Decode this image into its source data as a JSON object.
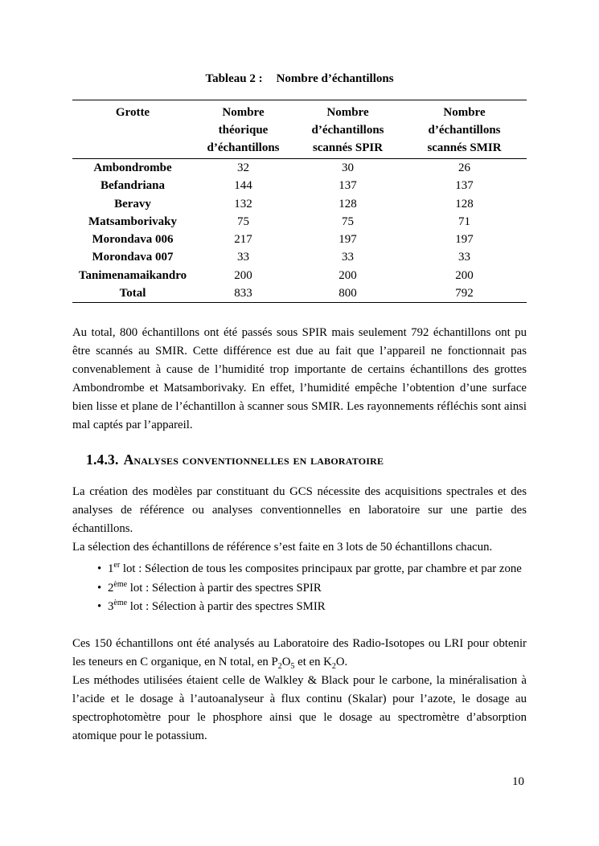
{
  "page": {
    "number": "10"
  },
  "table": {
    "caption_label": "Tableau 2 :",
    "caption_title": "Nombre d’échantillons",
    "headers": {
      "col1": "Grotte",
      "col2": [
        "Nombre",
        "théorique",
        "d’échantillons"
      ],
      "col3": [
        "Nombre",
        "d’échantillons",
        "scannés SPIR"
      ],
      "col4": [
        "Nombre",
        "d’échantillons",
        "scannés SMIR"
      ]
    },
    "rows": [
      {
        "grotte": "Ambondrombe",
        "theorique": "32",
        "spir": "30",
        "smir": "26"
      },
      {
        "grotte": "Befandriana",
        "theorique": "144",
        "spir": "137",
        "smir": "137"
      },
      {
        "grotte": "Beravy",
        "theorique": "132",
        "spir": "128",
        "smir": "128"
      },
      {
        "grotte": "Matsamborivaky",
        "theorique": "75",
        "spir": "75",
        "smir": "71"
      },
      {
        "grotte": "Morondava 006",
        "theorique": "217",
        "spir": "197",
        "smir": "197"
      },
      {
        "grotte": "Morondava 007",
        "theorique": "33",
        "spir": "33",
        "smir": "33"
      },
      {
        "grotte": "Tanimenamaikandro",
        "theorique": "200",
        "spir": "200",
        "smir": "200"
      },
      {
        "grotte": "Total",
        "theorique": "833",
        "spir": "800",
        "smir": "792"
      }
    ]
  },
  "section": {
    "number": "1.4.3.",
    "title": "Analyses conventionnelles en laboratoire"
  },
  "main": {
    "p1": "Au total, 800 échantillons ont été passés sous SPIR mais seulement 792 échantillons ont pu être scannés au SMIR. Cette différence est due au fait que l’appareil ne fonctionnait pas convenablement à cause de l’humidité trop importante de certains échantillons des grottes Ambondrombe et Matsamborivaky. En effet, l’humidité empêche l’obtention d’une surface bien lisse et plane de l’échantillon à scanner sous SMIR. Les rayonnements réfléchis sont ainsi mal captés par l’appareil.",
    "p2": "La création des modèles par constituant du GCS nécessite des acquisitions spectrales et des analyses de référence ou analyses conventionnelles en laboratoire sur une partie des échantillons.",
    "p3": "La sélection des échantillons de référence s’est faite en 3 lots de 50 échantillons chacun.",
    "bullets": [
      {
        "num": "1",
        "sup": "er",
        "text": " lot : Sélection de tous les composites principaux par grotte, par chambre et par zone"
      },
      {
        "num": "2",
        "sup": "ème",
        "text": " lot : Sélection à partir des spectres SPIR"
      },
      {
        "num": "3",
        "sup": "ème",
        "text": " lot : Sélection à partir des spectres SMIR"
      }
    ],
    "p4": {
      "part1": "Ces 150 échantillons ont été analysés au Laboratoire des Radio-Isotopes ou LRI pour obtenir les teneurs en C organique, en N total, en P",
      "sub1": "2",
      "part2": "O",
      "sub2": "5",
      "part3": " et en K",
      "sub3": "2",
      "part4": "O."
    },
    "p5": "Les méthodes utilisées étaient celle de Walkley & Black pour le carbone, la minéralisation à l’acide et le dosage à l’autoanalyseur à flux continu (Skalar) pour l’azote, le dosage au spectrophotomètre pour le phosphore ainsi que le dosage au spectromètre d’absorption atomique pour le potassium."
  }
}
